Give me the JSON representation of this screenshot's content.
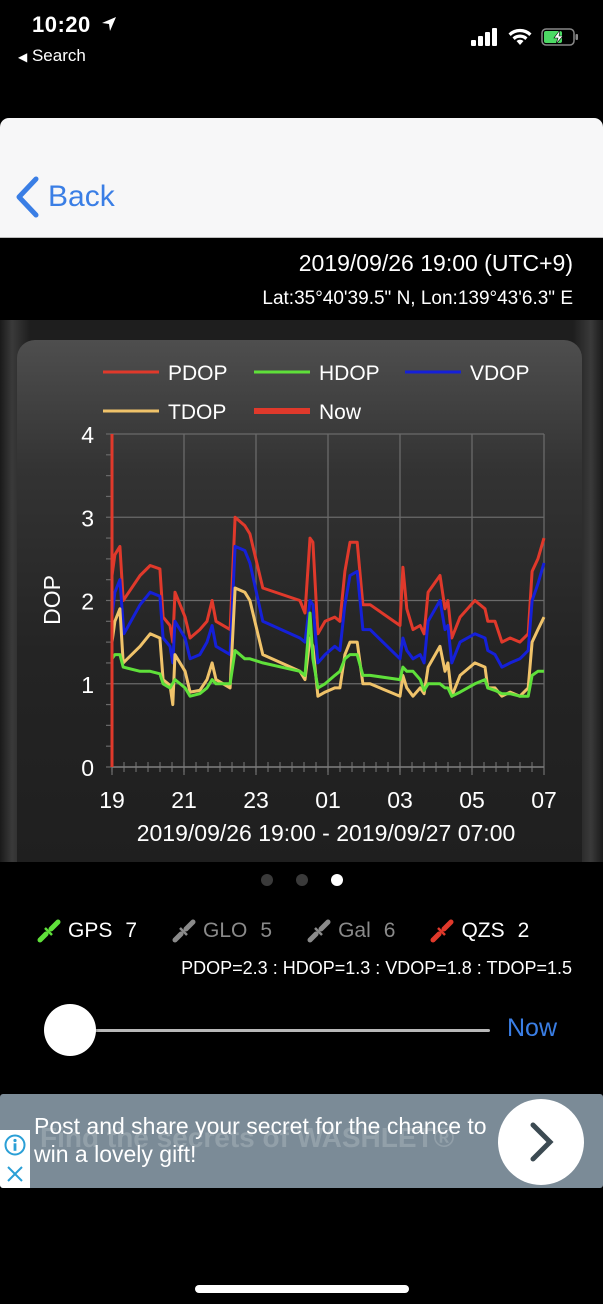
{
  "status_bar": {
    "time": "10:20",
    "back_app": "Search",
    "battery_color": "#4cd964"
  },
  "nav": {
    "back_label": "Back",
    "accent": "#3a7ee5"
  },
  "info": {
    "datetime": "2019/09/26 19:00 (UTC+9)",
    "coordinates": "Lat:35°40'39.5\" N, Lon:139°43'6.3\" E"
  },
  "chart_data": {
    "type": "line",
    "title": "",
    "xlabel": "2019/09/26 19:00 - 2019/09/27 07:00",
    "ylabel": "DOP",
    "ylim": [
      0,
      4
    ],
    "yticks": [
      "0",
      "1",
      "2",
      "3",
      "4"
    ],
    "x_tick_labels": [
      "19",
      "21",
      "23",
      "01",
      "03",
      "05",
      "07"
    ],
    "x_range_hours": [
      0,
      12
    ],
    "grid": true,
    "legend_position": "top",
    "legend": [
      {
        "name": "PDOP",
        "color": "#e0392b"
      },
      {
        "name": "HDOP",
        "color": "#5fe03a"
      },
      {
        "name": "VDOP",
        "color": "#1520d8"
      },
      {
        "name": "TDOP",
        "color": "#f0c36a"
      },
      {
        "name": "Now",
        "color": "#e0392b"
      }
    ],
    "now_marker_hour": 0,
    "series": [
      {
        "name": "PDOP",
        "color": "#e0392b",
        "points": [
          [
            0,
            2.3
          ],
          [
            0.08,
            2.55
          ],
          [
            0.22,
            2.65
          ],
          [
            0.31,
            2.0
          ],
          [
            0.78,
            2.3
          ],
          [
            1.06,
            2.42
          ],
          [
            1.33,
            2.38
          ],
          [
            1.42,
            1.8
          ],
          [
            1.61,
            1.7
          ],
          [
            1.69,
            1.5
          ],
          [
            1.75,
            2.1
          ],
          [
            2.03,
            1.8
          ],
          [
            2.17,
            1.55
          ],
          [
            2.44,
            1.65
          ],
          [
            2.64,
            1.75
          ],
          [
            2.78,
            2.0
          ],
          [
            2.89,
            1.75
          ],
          [
            3.28,
            1.65
          ],
          [
            3.42,
            3.0
          ],
          [
            3.69,
            2.9
          ],
          [
            3.83,
            2.8
          ],
          [
            4.19,
            2.15
          ],
          [
            5.22,
            2.0
          ],
          [
            5.36,
            1.85
          ],
          [
            5.5,
            2.75
          ],
          [
            5.58,
            2.7
          ],
          [
            5.72,
            1.6
          ],
          [
            5.92,
            1.75
          ],
          [
            6.19,
            1.8
          ],
          [
            6.33,
            1.75
          ],
          [
            6.47,
            2.35
          ],
          [
            6.61,
            2.7
          ],
          [
            6.81,
            2.7
          ],
          [
            6.97,
            1.95
          ],
          [
            7.17,
            1.95
          ],
          [
            8.0,
            1.7
          ],
          [
            8.08,
            2.4
          ],
          [
            8.19,
            1.9
          ],
          [
            8.36,
            1.65
          ],
          [
            8.56,
            1.7
          ],
          [
            8.67,
            1.6
          ],
          [
            8.78,
            2.1
          ],
          [
            9.11,
            2.3
          ],
          [
            9.25,
            1.9
          ],
          [
            9.33,
            2.0
          ],
          [
            9.44,
            1.55
          ],
          [
            9.67,
            1.8
          ],
          [
            10.08,
            2.0
          ],
          [
            10.36,
            1.9
          ],
          [
            10.44,
            1.75
          ],
          [
            10.64,
            1.75
          ],
          [
            10.83,
            1.5
          ],
          [
            11.06,
            1.55
          ],
          [
            11.33,
            1.5
          ],
          [
            11.56,
            1.6
          ],
          [
            11.67,
            2.35
          ],
          [
            11.83,
            2.5
          ],
          [
            12.0,
            2.75
          ]
        ]
      },
      {
        "name": "VDOP",
        "color": "#1520d8",
        "points": [
          [
            0,
            1.8
          ],
          [
            0.08,
            2.1
          ],
          [
            0.22,
            2.25
          ],
          [
            0.33,
            1.6
          ],
          [
            0.78,
            1.95
          ],
          [
            1.06,
            2.1
          ],
          [
            1.33,
            2.05
          ],
          [
            1.42,
            1.55
          ],
          [
            1.61,
            1.45
          ],
          [
            1.69,
            1.25
          ],
          [
            1.75,
            1.75
          ],
          [
            2.03,
            1.55
          ],
          [
            2.17,
            1.3
          ],
          [
            2.44,
            1.35
          ],
          [
            2.64,
            1.5
          ],
          [
            2.78,
            1.7
          ],
          [
            2.89,
            1.45
          ],
          [
            3.28,
            1.35
          ],
          [
            3.42,
            2.65
          ],
          [
            3.69,
            2.6
          ],
          [
            3.83,
            2.45
          ],
          [
            4.19,
            1.75
          ],
          [
            5.22,
            1.55
          ],
          [
            5.36,
            1.5
          ],
          [
            5.5,
            2.0
          ],
          [
            5.58,
            1.95
          ],
          [
            5.72,
            1.25
          ],
          [
            5.92,
            1.35
          ],
          [
            6.19,
            1.45
          ],
          [
            6.33,
            1.4
          ],
          [
            6.47,
            1.95
          ],
          [
            6.61,
            2.3
          ],
          [
            6.81,
            2.35
          ],
          [
            6.97,
            1.65
          ],
          [
            7.17,
            1.65
          ],
          [
            8.0,
            1.3
          ],
          [
            8.08,
            1.55
          ],
          [
            8.19,
            1.4
          ],
          [
            8.36,
            1.3
          ],
          [
            8.56,
            1.35
          ],
          [
            8.67,
            1.25
          ],
          [
            8.78,
            1.75
          ],
          [
            9.11,
            2.0
          ],
          [
            9.25,
            1.65
          ],
          [
            9.33,
            1.7
          ],
          [
            9.44,
            1.25
          ],
          [
            9.67,
            1.5
          ],
          [
            10.08,
            1.6
          ],
          [
            10.36,
            1.55
          ],
          [
            10.44,
            1.4
          ],
          [
            10.64,
            1.35
          ],
          [
            10.83,
            1.2
          ],
          [
            11.06,
            1.25
          ],
          [
            11.33,
            1.3
          ],
          [
            11.56,
            1.4
          ],
          [
            11.67,
            2.0
          ],
          [
            11.83,
            2.2
          ],
          [
            12.0,
            2.45
          ]
        ]
      },
      {
        "name": "TDOP",
        "color": "#f0c36a",
        "points": [
          [
            0,
            1.5
          ],
          [
            0.08,
            1.75
          ],
          [
            0.22,
            1.9
          ],
          [
            0.31,
            1.25
          ],
          [
            0.78,
            1.45
          ],
          [
            1.06,
            1.6
          ],
          [
            1.33,
            1.55
          ],
          [
            1.42,
            1.05
          ],
          [
            1.61,
            0.98
          ],
          [
            1.69,
            0.75
          ],
          [
            1.75,
            1.35
          ],
          [
            2.03,
            1.15
          ],
          [
            2.17,
            0.9
          ],
          [
            2.44,
            0.92
          ],
          [
            2.64,
            1.05
          ],
          [
            2.78,
            1.25
          ],
          [
            2.89,
            1.05
          ],
          [
            3.28,
            0.95
          ],
          [
            3.42,
            2.15
          ],
          [
            3.69,
            2.1
          ],
          [
            3.83,
            2.0
          ],
          [
            4.19,
            1.35
          ],
          [
            5.22,
            1.15
          ],
          [
            5.36,
            1.05
          ],
          [
            5.5,
            1.55
          ],
          [
            5.58,
            1.45
          ],
          [
            5.72,
            0.85
          ],
          [
            5.92,
            0.9
          ],
          [
            6.19,
            0.95
          ],
          [
            6.33,
            0.95
          ],
          [
            6.47,
            1.35
          ],
          [
            6.61,
            1.5
          ],
          [
            6.81,
            1.5
          ],
          [
            6.97,
            1.0
          ],
          [
            7.17,
            1.0
          ],
          [
            8.0,
            0.85
          ],
          [
            8.08,
            1.1
          ],
          [
            8.19,
            0.95
          ],
          [
            8.36,
            0.85
          ],
          [
            8.56,
            0.95
          ],
          [
            8.67,
            0.88
          ],
          [
            8.78,
            1.2
          ],
          [
            9.11,
            1.45
          ],
          [
            9.25,
            1.15
          ],
          [
            9.33,
            1.25
          ],
          [
            9.44,
            0.85
          ],
          [
            9.67,
            1.1
          ],
          [
            10.08,
            1.25
          ],
          [
            10.36,
            1.2
          ],
          [
            10.44,
            0.95
          ],
          [
            10.64,
            0.95
          ],
          [
            10.83,
            0.85
          ],
          [
            11.06,
            0.9
          ],
          [
            11.33,
            0.85
          ],
          [
            11.56,
            0.95
          ],
          [
            11.67,
            1.5
          ],
          [
            11.83,
            1.65
          ],
          [
            12.0,
            1.8
          ]
        ]
      },
      {
        "name": "HDOP",
        "color": "#5fe03a",
        "points": [
          [
            0,
            1.3
          ],
          [
            0.08,
            1.35
          ],
          [
            0.22,
            1.35
          ],
          [
            0.31,
            1.2
          ],
          [
            0.78,
            1.15
          ],
          [
            1.06,
            1.15
          ],
          [
            1.33,
            1.12
          ],
          [
            1.42,
            1.0
          ],
          [
            1.61,
            0.95
          ],
          [
            1.75,
            1.05
          ],
          [
            2.03,
            0.95
          ],
          [
            2.17,
            0.85
          ],
          [
            2.44,
            0.88
          ],
          [
            2.64,
            0.95
          ],
          [
            2.78,
            1.05
          ],
          [
            2.89,
            1.0
          ],
          [
            3.28,
            1.0
          ],
          [
            3.42,
            1.4
          ],
          [
            3.69,
            1.3
          ],
          [
            3.83,
            1.3
          ],
          [
            4.19,
            1.25
          ],
          [
            5.22,
            1.15
          ],
          [
            5.36,
            1.1
          ],
          [
            5.5,
            1.85
          ],
          [
            5.58,
            1.3
          ],
          [
            5.72,
            0.95
          ],
          [
            5.92,
            1.0
          ],
          [
            6.19,
            1.1
          ],
          [
            6.33,
            1.15
          ],
          [
            6.47,
            1.3
          ],
          [
            6.61,
            1.35
          ],
          [
            6.81,
            1.35
          ],
          [
            6.97,
            1.1
          ],
          [
            7.17,
            1.1
          ],
          [
            8.0,
            1.05
          ],
          [
            8.08,
            1.2
          ],
          [
            8.19,
            1.15
          ],
          [
            8.36,
            1.15
          ],
          [
            8.56,
            1.05
          ],
          [
            8.67,
            0.92
          ],
          [
            8.78,
            1.0
          ],
          [
            9.11,
            1.0
          ],
          [
            9.25,
            0.95
          ],
          [
            9.33,
            0.95
          ],
          [
            9.44,
            0.85
          ],
          [
            9.67,
            0.9
          ],
          [
            10.08,
            1.0
          ],
          [
            10.36,
            1.05
          ],
          [
            10.44,
            0.95
          ],
          [
            10.64,
            0.92
          ],
          [
            10.83,
            0.88
          ],
          [
            11.06,
            0.88
          ],
          [
            11.33,
            0.85
          ],
          [
            11.56,
            0.85
          ],
          [
            11.67,
            1.1
          ],
          [
            11.83,
            1.15
          ],
          [
            12.0,
            1.15
          ]
        ]
      }
    ]
  },
  "pager": {
    "pages": 3,
    "active": 2
  },
  "satellites": [
    {
      "name": "GPS",
      "count": "7",
      "icon_color": "#5fe03a",
      "text_color": "#ffffff"
    },
    {
      "name": "GLO",
      "count": "5",
      "icon_color": "#8a8a8a",
      "text_color": "#8a8a8a"
    },
    {
      "name": "Gal",
      "count": "6",
      "icon_color": "#8a8a8a",
      "text_color": "#8a8a8a"
    },
    {
      "name": "QZS",
      "count": "2",
      "icon_color": "#e0392b",
      "text_color": "#ffffff"
    }
  ],
  "dop_summary": "PDOP=2.3 : HDOP=1.3 : VDOP=1.8 : TDOP=1.5",
  "slider": {
    "value": 0,
    "now_label": "Now"
  },
  "ad": {
    "text": "Post and share your secret for the chance to win a lovely gift!",
    "ghost_text": "Find the secrets of WASHLET®",
    "info_icon": "info-icon",
    "close_icon": "close-icon",
    "cta_icon": "chevron-right-icon"
  }
}
